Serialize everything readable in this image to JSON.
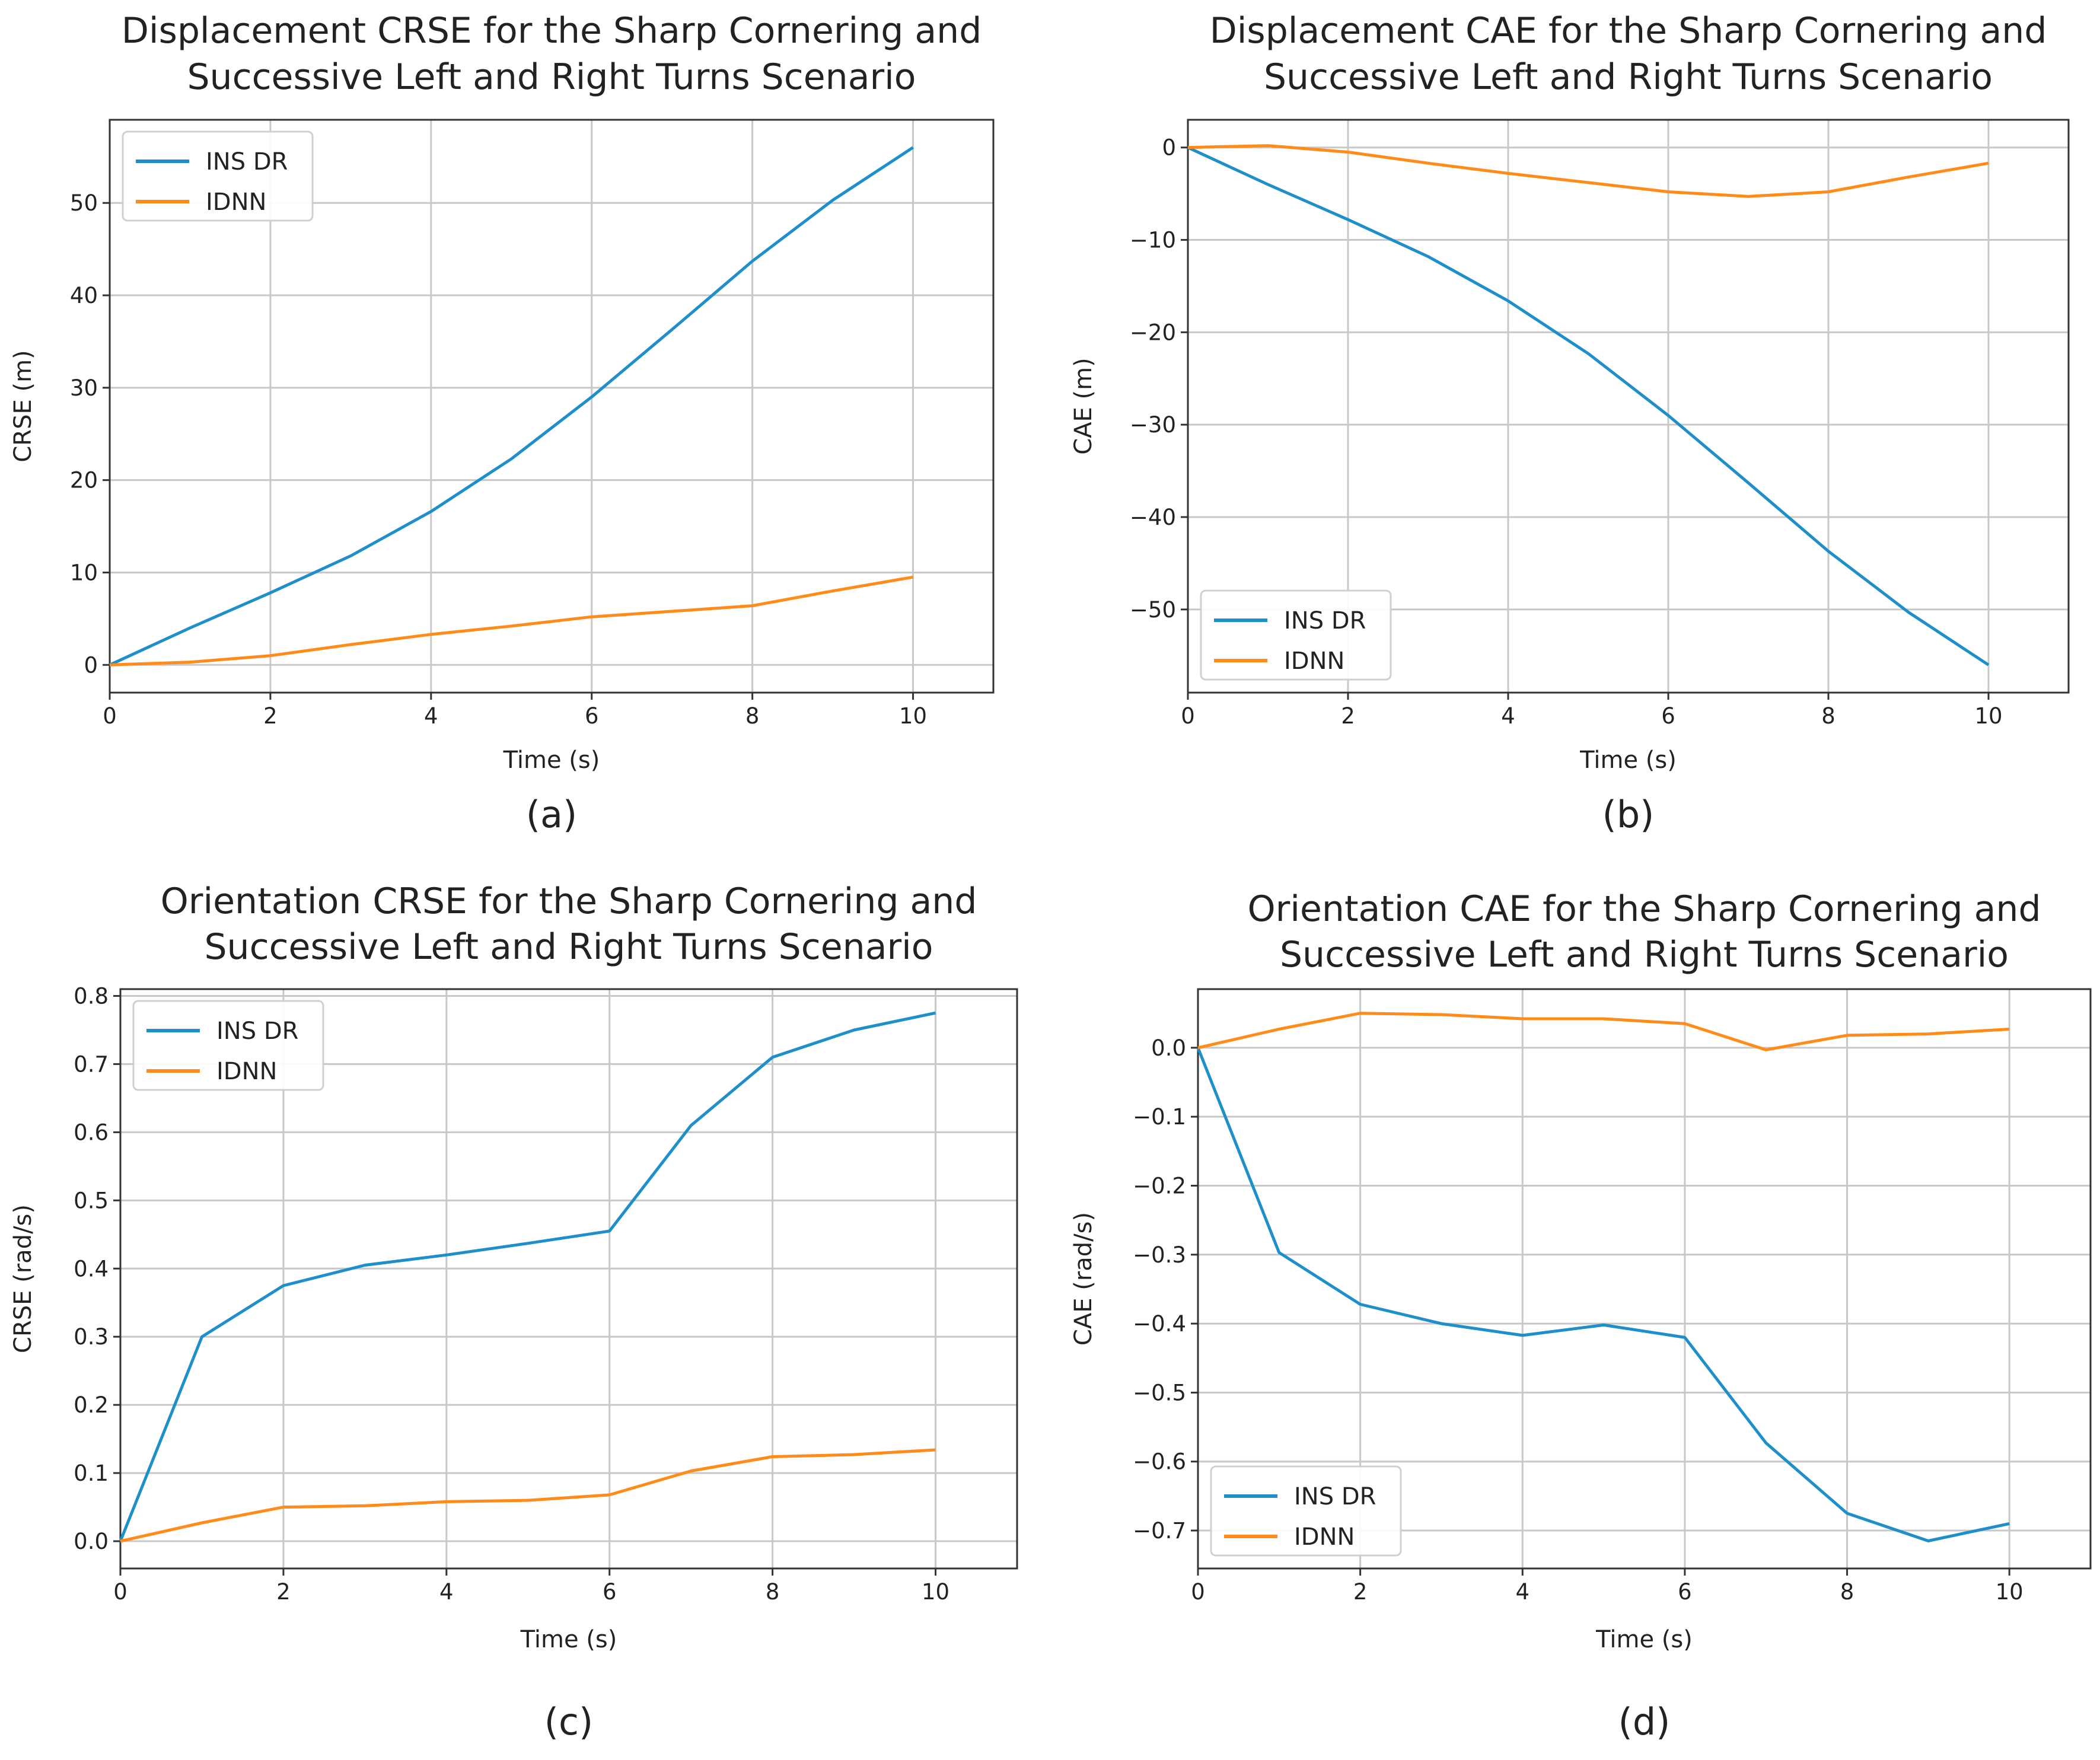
{
  "figure": {
    "colors": {
      "ins_dr": "#1f8fc9",
      "idnn": "#ff8c1a",
      "grid": "#c8c8c8",
      "frame": "#333333"
    }
  },
  "chart_data": [
    {
      "id": "a",
      "type": "line",
      "title": [
        "Displacement CRSE for the Sharp Cornering and",
        "Successive Left and Right Turns Scenario"
      ],
      "xlabel": "Time (s)",
      "ylabel": "CRSE (m)",
      "caption": "(a)",
      "xlim": [
        0,
        11
      ],
      "ylim": [
        -3,
        59
      ],
      "xticks": [
        0,
        2,
        4,
        6,
        8,
        10
      ],
      "yticks": [
        0,
        10,
        20,
        30,
        40,
        50
      ],
      "grid": true,
      "legend_position": "top-left",
      "x": [
        0,
        1,
        2,
        3,
        4,
        5,
        6,
        7,
        8,
        9,
        10
      ],
      "series": [
        {
          "name": "INS DR",
          "color": "#1f8fc9",
          "values": [
            0,
            4,
            7.8,
            11.8,
            16.6,
            22.3,
            29,
            36.3,
            43.7,
            50.3,
            56
          ]
        },
        {
          "name": "IDNN",
          "color": "#ff8c1a",
          "values": [
            0,
            0.3,
            1,
            2.2,
            3.3,
            4.2,
            5.2,
            5.8,
            6.4,
            8,
            9.5
          ]
        }
      ]
    },
    {
      "id": "b",
      "type": "line",
      "title": [
        "Displacement CAE for the Sharp Cornering and",
        "Successive Left and Right Turns Scenario"
      ],
      "xlabel": "Time (s)",
      "ylabel": "CAE (m)",
      "caption": "(b)",
      "xlim": [
        0,
        11
      ],
      "ylim": [
        -59,
        3
      ],
      "xticks": [
        0,
        2,
        4,
        6,
        8,
        10
      ],
      "yticks": [
        0,
        -10,
        -20,
        -30,
        -40,
        -50
      ],
      "ytick_labels": [
        "0",
        "−10",
        "−20",
        "−30",
        "−40",
        "−50"
      ],
      "grid": true,
      "legend_position": "bottom-left",
      "x": [
        0,
        1,
        2,
        3,
        4,
        5,
        6,
        7,
        8,
        9,
        10
      ],
      "series": [
        {
          "name": "INS DR",
          "color": "#1f8fc9",
          "values": [
            0,
            -4,
            -7.8,
            -11.8,
            -16.6,
            -22.3,
            -29,
            -36.3,
            -43.7,
            -50.3,
            -56
          ]
        },
        {
          "name": "IDNN",
          "color": "#ff8c1a",
          "values": [
            0,
            0.2,
            -0.5,
            -1.7,
            -2.8,
            -3.8,
            -4.8,
            -5.3,
            -4.8,
            -3.2,
            -1.7
          ]
        }
      ]
    },
    {
      "id": "c",
      "type": "line",
      "title": [
        "Orientation CRSE for the Sharp Cornering and",
        "Successive Left and Right Turns Scenario"
      ],
      "xlabel": "Time (s)",
      "ylabel": "CRSE (rad/s)",
      "caption": "(c)",
      "xlim": [
        0,
        11
      ],
      "ylim": [
        -0.04,
        0.81
      ],
      "xticks": [
        0,
        2,
        4,
        6,
        8,
        10
      ],
      "yticks": [
        0,
        0.1,
        0.2,
        0.3,
        0.4,
        0.5,
        0.6,
        0.7,
        0.8
      ],
      "ytick_labels": [
        "0.0",
        "0.1",
        "0.2",
        "0.3",
        "0.4",
        "0.5",
        "0.6",
        "0.7",
        "0.8"
      ],
      "grid": true,
      "legend_position": "top-left",
      "x": [
        0,
        1,
        2,
        3,
        4,
        5,
        6,
        7,
        8,
        9,
        10
      ],
      "series": [
        {
          "name": "INS DR",
          "color": "#1f8fc9",
          "values": [
            0,
            0.3,
            0.375,
            0.405,
            0.42,
            0.437,
            0.455,
            0.61,
            0.71,
            0.75,
            0.775
          ]
        },
        {
          "name": "IDNN",
          "color": "#ff8c1a",
          "values": [
            0,
            0.027,
            0.05,
            0.052,
            0.058,
            0.06,
            0.068,
            0.103,
            0.124,
            0.127,
            0.134
          ]
        }
      ]
    },
    {
      "id": "d",
      "type": "line",
      "title": [
        "Orientation CAE for the Sharp Cornering and",
        "Successive Left and Right Turns Scenario"
      ],
      "xlabel": "Time (s)",
      "ylabel": "CAE (rad/s)",
      "caption": "(d)",
      "xlim": [
        0,
        11
      ],
      "ylim": [
        -0.755,
        0.085
      ],
      "xticks": [
        0,
        2,
        4,
        6,
        8,
        10
      ],
      "yticks": [
        0,
        -0.1,
        -0.2,
        -0.3,
        -0.4,
        -0.5,
        -0.6,
        -0.7
      ],
      "ytick_labels": [
        "0.0",
        "−0.1",
        "−0.2",
        "−0.3",
        "−0.4",
        "−0.5",
        "−0.6",
        "−0.7"
      ],
      "grid": true,
      "legend_position": "bottom-left",
      "x": [
        0,
        1,
        2,
        3,
        4,
        5,
        6,
        7,
        8,
        9,
        10
      ],
      "series": [
        {
          "name": "INS DR",
          "color": "#1f8fc9",
          "values": [
            0,
            -0.297,
            -0.372,
            -0.4,
            -0.417,
            -0.402,
            -0.42,
            -0.573,
            -0.675,
            -0.715,
            -0.69
          ]
        },
        {
          "name": "IDNN",
          "color": "#ff8c1a",
          "values": [
            0,
            0.027,
            0.05,
            0.048,
            0.042,
            0.042,
            0.035,
            -0.003,
            0.018,
            0.02,
            0.027
          ]
        }
      ]
    }
  ]
}
